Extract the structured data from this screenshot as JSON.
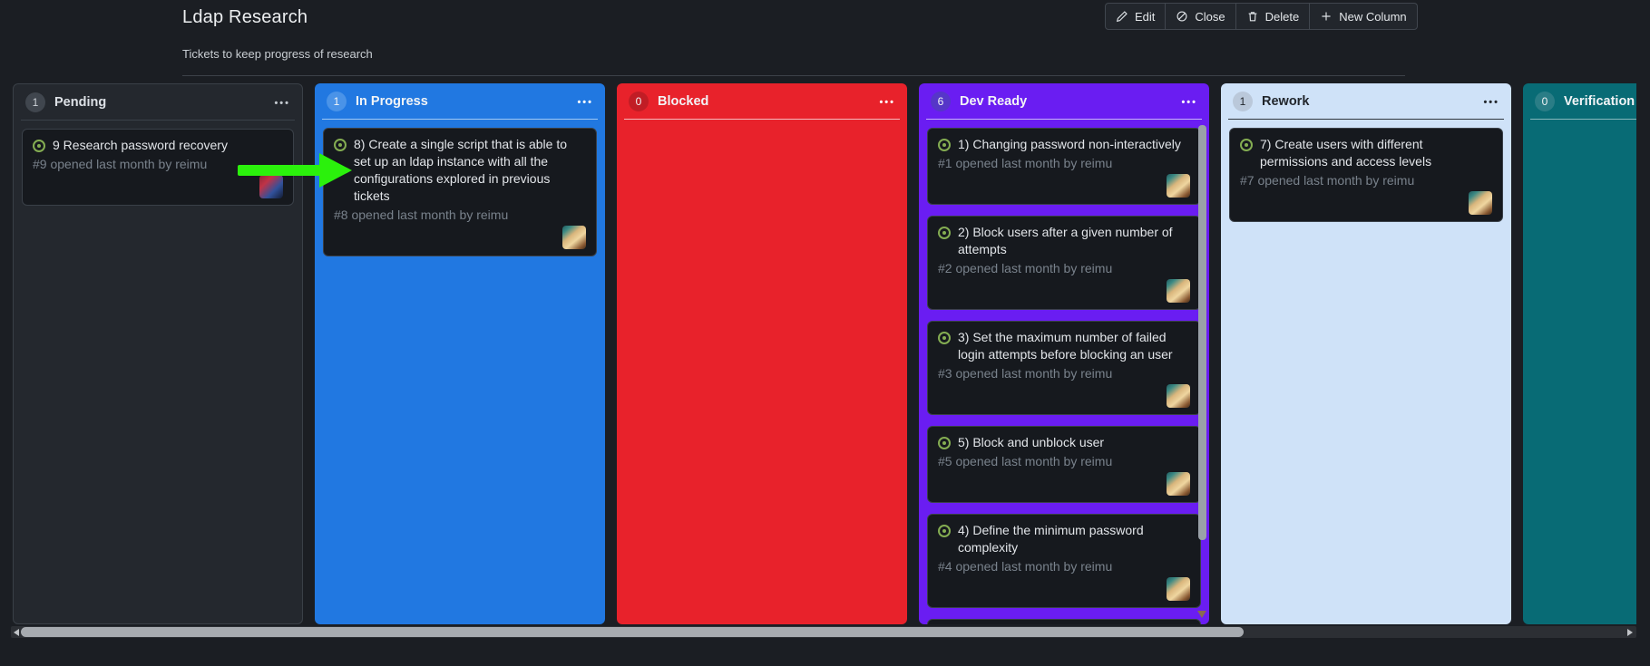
{
  "header": {
    "title": "Ldap Research",
    "subtitle": "Tickets to keep progress of research"
  },
  "toolbar": {
    "buttons": [
      {
        "id": "edit",
        "label": "Edit",
        "icon": "pencil-icon"
      },
      {
        "id": "close",
        "label": "Close",
        "icon": "circle-slash-icon"
      },
      {
        "id": "delete",
        "label": "Delete",
        "icon": "trash-icon"
      },
      {
        "id": "new-column",
        "label": "New Column",
        "icon": "plus-icon"
      }
    ]
  },
  "board": {
    "columns": [
      {
        "name": "Pending",
        "count": "1",
        "color": "#24282e",
        "badge_color": "#40464e",
        "divider_color": "#3b4149",
        "text": "light",
        "neutral": true,
        "cards": [
          {
            "title": "9 Research password recovery",
            "meta": "#9 opened last month by reimu",
            "avatar": "reimu-red"
          }
        ]
      },
      {
        "name": "In Progress",
        "count": "1",
        "color": "#2178e1",
        "badge_color": "#4a93e8",
        "divider_color": "#9ec7f3",
        "text": "light",
        "cards": [
          {
            "title": "8) Create a single script that is able to set up an ldap instance with all the configurations explored in previous tickets",
            "meta": "#8 opened last month by reimu",
            "avatar": "reimu-blonde"
          }
        ]
      },
      {
        "name": "Blocked",
        "count": "0",
        "color": "#e8222b",
        "badge_color": "#c11d25",
        "divider_color": "#f4b9bc",
        "text": "light",
        "cards": []
      },
      {
        "name": "Dev Ready",
        "count": "6",
        "color": "#6a1df2",
        "badge_color": "#5636c8",
        "divider_color": "#c7b3f7",
        "text": "light",
        "partial_card": true,
        "vertical_scrollbar": true,
        "cards": [
          {
            "title": "1) Changing password non-interactively",
            "meta": "#1 opened last month by reimu",
            "avatar": "reimu-blonde"
          },
          {
            "title": "2) Block users after a given number of attempts",
            "meta": "#2 opened last month by reimu",
            "avatar": "reimu-blonde"
          },
          {
            "title": "3) Set the maximum number of failed login attempts before blocking an user",
            "meta": "#3 opened last month by reimu",
            "avatar": "reimu-blonde"
          },
          {
            "title": "5) Block and unblock user",
            "meta": "#5 opened last month by reimu",
            "avatar": "reimu-blonde"
          },
          {
            "title": "4) Define the minimum password complexity",
            "meta": "#4 opened last month by reimu",
            "avatar": "reimu-blonde"
          }
        ]
      },
      {
        "name": "Rework",
        "count": "1",
        "color": "#cfe2f8",
        "badge_color": "#bac8da",
        "divider_color": "#30363d",
        "text": "dark",
        "cards": [
          {
            "title": "7) Create users with different permissions and access levels",
            "meta": "#7 opened last month by reimu",
            "avatar": "reimu-blonde"
          }
        ]
      },
      {
        "name": "Verification",
        "count": "0",
        "color": "#086b75",
        "badge_color": "#2a7d86",
        "divider_color": "#86b7bc",
        "text": "light",
        "cards": []
      }
    ]
  },
  "annotation": {
    "type": "arrow-right",
    "color": "#2bf10c"
  }
}
